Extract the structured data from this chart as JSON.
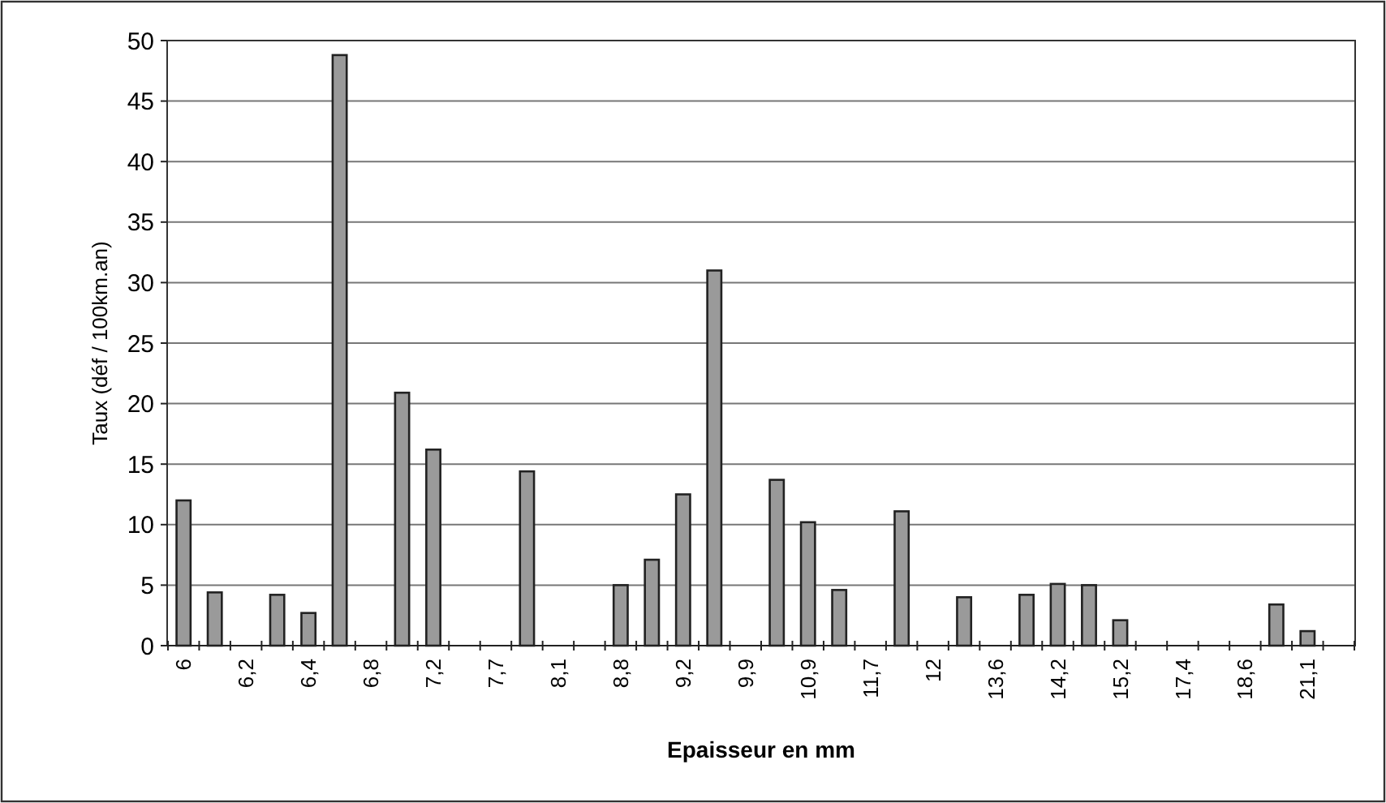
{
  "chart_data": {
    "type": "bar",
    "xlabel": "Epaisseur en mm",
    "ylabel": "Taux (déf / 100km.an)",
    "categories": [
      "6",
      null,
      "6,2",
      null,
      "6,4",
      null,
      "6,8",
      null,
      "7,2",
      null,
      "7,7",
      null,
      "8,1",
      null,
      "8,8",
      null,
      "9,2",
      null,
      "9,9",
      null,
      "10,9",
      null,
      "11,7",
      null,
      "12",
      null,
      "13,6",
      null,
      "14,2",
      null,
      "15,2",
      null,
      "17,4",
      null,
      "18,6",
      null,
      "21,1",
      null
    ],
    "values": [
      12,
      4.4,
      null,
      4.2,
      2.7,
      48.8,
      null,
      20.9,
      16.2,
      null,
      null,
      14.4,
      null,
      null,
      5,
      7.1,
      12.5,
      31,
      null,
      13.7,
      10.2,
      4.6,
      null,
      11.1,
      null,
      4,
      null,
      4.2,
      5.1,
      5,
      2.1,
      null,
      null,
      null,
      null,
      3.4,
      1.2,
      null
    ],
    "color": "#9a9a9a",
    "ylim": [
      0,
      50
    ],
    "yticks": [
      0,
      5,
      10,
      15,
      20,
      25,
      30,
      35,
      40,
      45,
      50
    ],
    "grid": "y"
  }
}
